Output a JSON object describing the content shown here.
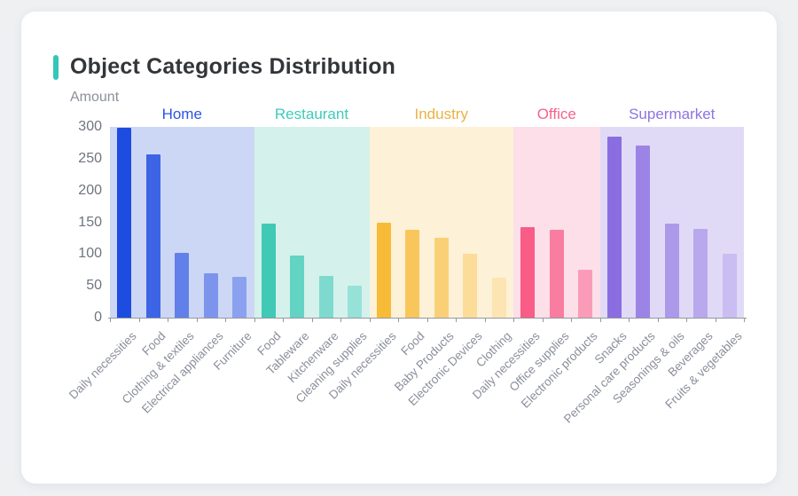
{
  "card": {
    "title": "Object Categories Distribution",
    "accent_color": "#35c6b8"
  },
  "chart_data": {
    "type": "bar",
    "title": "Object Categories Distribution",
    "xlabel": "",
    "ylabel": "Amount",
    "ylim": [
      0,
      300
    ],
    "yticks": [
      0,
      50,
      100,
      150,
      200,
      250,
      300
    ],
    "grid": false,
    "legend_position": "none",
    "axis_text_color": "#8a8f9a",
    "groups": [
      {
        "name": "Home",
        "label_color": "#2b55e1",
        "band_color": "#ccd7f5",
        "bars": [
          {
            "label": "Daily necessities",
            "value": 298,
            "color": "#1d4ce0"
          },
          {
            "label": "Food",
            "value": 257,
            "color": "#3c64e5"
          },
          {
            "label": "Clothing & textiles",
            "value": 102,
            "color": "#6280e9"
          },
          {
            "label": "Electrical appliances",
            "value": 70,
            "color": "#7d94ec"
          },
          {
            "label": "Furniture",
            "value": 64,
            "color": "#8ba1f0"
          }
        ]
      },
      {
        "name": "Restaurant",
        "label_color": "#3ecbb8",
        "band_color": "#d5f1ec",
        "bars": [
          {
            "label": "Food",
            "value": 148,
            "color": "#40c9b5"
          },
          {
            "label": "Tableware",
            "value": 97,
            "color": "#63d3c3"
          },
          {
            "label": "Kitchenware",
            "value": 65,
            "color": "#7edace"
          },
          {
            "label": "Cleaning supplies",
            "value": 50,
            "color": "#97e2d8"
          }
        ]
      },
      {
        "name": "Industry",
        "label_color": "#e9b343",
        "band_color": "#fdf2d7",
        "bars": [
          {
            "label": "Daily necessities",
            "value": 150,
            "color": "#f8bb37"
          },
          {
            "label": "Food",
            "value": 138,
            "color": "#f9c65b"
          },
          {
            "label": "Baby Products",
            "value": 126,
            "color": "#fad077"
          },
          {
            "label": "Electronic Devices",
            "value": 100,
            "color": "#fbdc99"
          },
          {
            "label": "Clothing",
            "value": 63,
            "color": "#fce5b3"
          }
        ]
      },
      {
        "name": "Office",
        "label_color": "#f7618d",
        "band_color": "#fcdfe9",
        "bars": [
          {
            "label": "Daily necessities",
            "value": 142,
            "color": "#f85c87"
          },
          {
            "label": "Office supplies",
            "value": 138,
            "color": "#f97da0"
          },
          {
            "label": "Electronic products",
            "value": 75,
            "color": "#fa9cb8"
          }
        ]
      },
      {
        "name": "Supermarket",
        "label_color": "#8d74e2",
        "band_color": "#e1daf7",
        "bars": [
          {
            "label": "Snacks",
            "value": 285,
            "color": "#8a6de0"
          },
          {
            "label": "Personal care products",
            "value": 271,
            "color": "#9c84e6"
          },
          {
            "label": "Seasonings & oils",
            "value": 148,
            "color": "#ad99ea"
          },
          {
            "label": "Beverages",
            "value": 140,
            "color": "#b9a8ee"
          },
          {
            "label": "Fruits & vegetables",
            "value": 101,
            "color": "#cabdf2"
          }
        ]
      }
    ]
  }
}
